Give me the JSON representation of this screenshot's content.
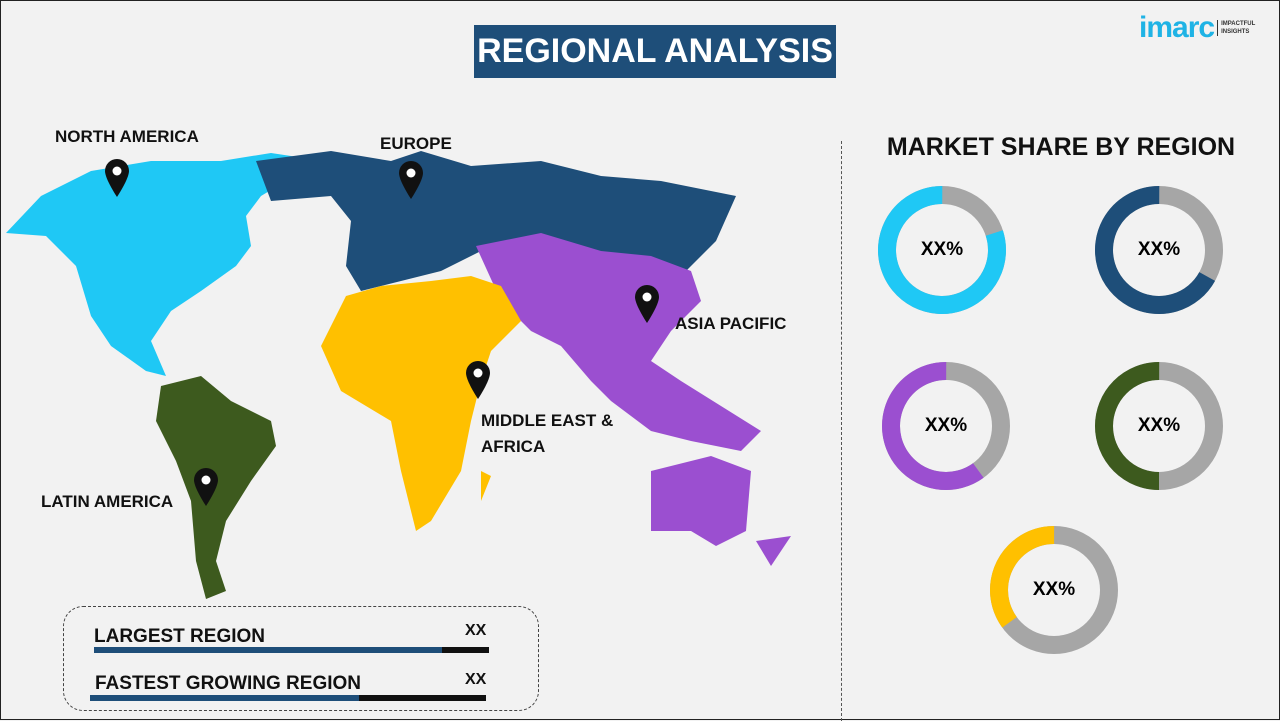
{
  "header": {
    "title": "REGIONAL ANALYSIS",
    "logo_word": "imarc",
    "logo_tagline": "IMPACTFUL INSIGHTS"
  },
  "map": {
    "regions": [
      {
        "name": "NORTH AMERICA",
        "color": "#1fc8f5"
      },
      {
        "name": "EUROPE",
        "color": "#1e4e79"
      },
      {
        "name": "ASIA PACIFIC",
        "color": "#9b4fd0"
      },
      {
        "name": "MIDDLE EAST & AFRICA",
        "color": "#ffc000"
      },
      {
        "name": "LATIN AMERICA",
        "color": "#3d5a1e"
      }
    ],
    "pin_icon": "map-pin-icon"
  },
  "market_share": {
    "title": "MARKET SHARE BY REGION",
    "rest_color": "#a6a6a6",
    "donuts": [
      {
        "region": "North America",
        "label": "XX%",
        "fraction": 0.8,
        "color": "#1fc8f5"
      },
      {
        "region": "Europe",
        "label": "XX%",
        "fraction": 0.67,
        "color": "#1e4e79"
      },
      {
        "region": "Asia Pacific",
        "label": "XX%",
        "fraction": 0.6,
        "color": "#9b4fd0"
      },
      {
        "region": "Latin America",
        "label": "XX%",
        "fraction": 0.5,
        "color": "#3d5a1e"
      },
      {
        "region": "Middle East & Africa",
        "label": "XX%",
        "fraction": 0.35,
        "color": "#ffc000"
      }
    ]
  },
  "summary": {
    "rows": [
      {
        "label": "LARGEST REGION",
        "value": "XX",
        "fill": 0.88
      },
      {
        "label": "FASTEST GROWING REGION",
        "value": "XX",
        "fill": 0.68
      }
    ]
  }
}
